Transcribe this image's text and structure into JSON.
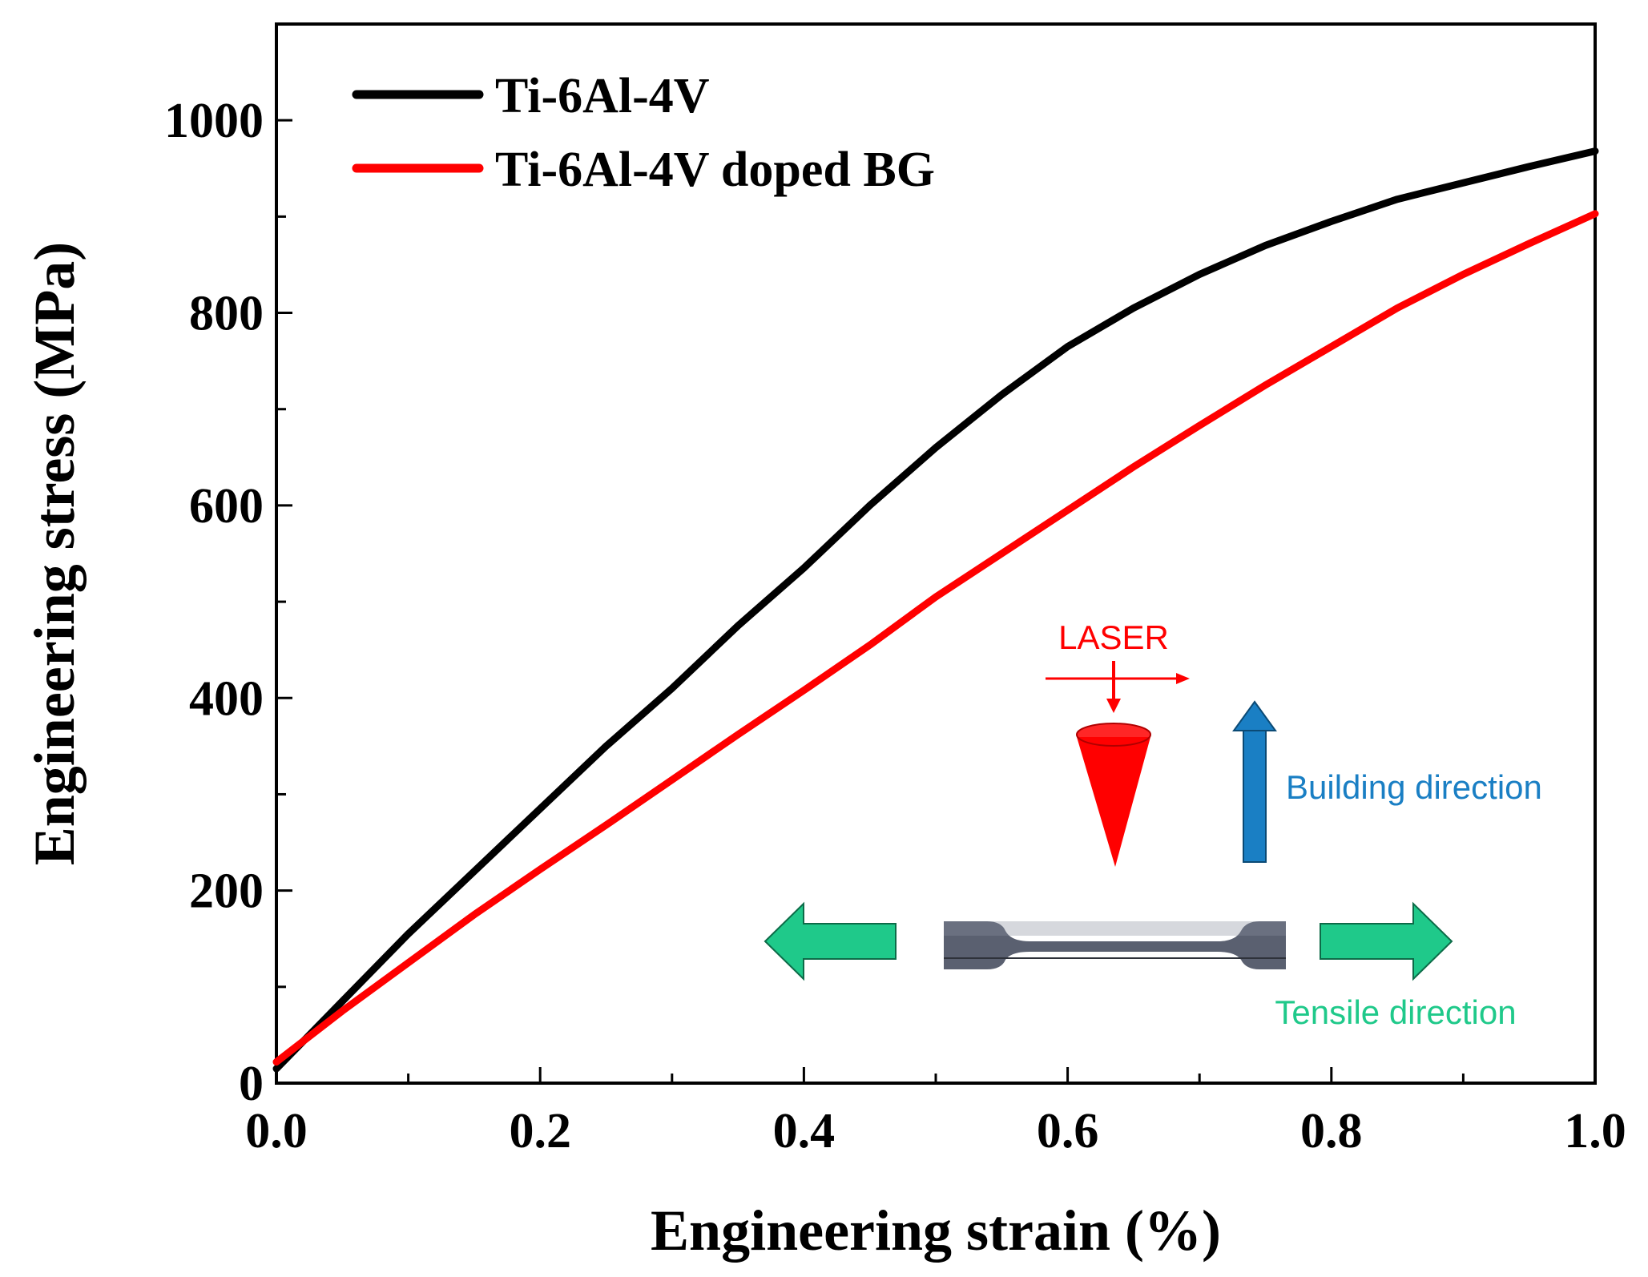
{
  "chart_data": {
    "type": "line",
    "title": "",
    "xlabel": "Engineering strain (%)",
    "ylabel": "Engineering stress (MPa)",
    "xlim": [
      0.0,
      1.0
    ],
    "ylim": [
      0,
      1100
    ],
    "xticks": [
      "0.0",
      "0.2",
      "0.4",
      "0.6",
      "0.8",
      "1.0"
    ],
    "xtick_values": [
      0.0,
      0.2,
      0.4,
      0.6,
      0.8,
      1.0
    ],
    "yticks": [
      "0",
      "200",
      "400",
      "600",
      "800",
      "1000"
    ],
    "ytick_values": [
      0,
      200,
      400,
      600,
      800,
      1000
    ],
    "grid": false,
    "legend_position": "top-left",
    "series": [
      {
        "name": "Ti-6Al-4V",
        "color": "#000000",
        "x": [
          0.0,
          0.05,
          0.1,
          0.15,
          0.2,
          0.25,
          0.3,
          0.35,
          0.4,
          0.45,
          0.5,
          0.55,
          0.6,
          0.65,
          0.7,
          0.75,
          0.8,
          0.85,
          0.9,
          0.95,
          1.0
        ],
        "y": [
          15,
          85,
          155,
          220,
          285,
          350,
          410,
          475,
          535,
          600,
          660,
          715,
          765,
          805,
          840,
          870,
          895,
          918,
          935,
          952,
          968
        ]
      },
      {
        "name": "Ti-6Al-4V doped BG",
        "color": "#ff0000",
        "x": [
          0.0,
          0.05,
          0.1,
          0.15,
          0.2,
          0.25,
          0.3,
          0.35,
          0.4,
          0.45,
          0.5,
          0.55,
          0.6,
          0.65,
          0.7,
          0.75,
          0.8,
          0.85,
          0.9,
          0.95,
          1.0
        ],
        "y": [
          22,
          75,
          125,
          175,
          222,
          268,
          315,
          362,
          408,
          455,
          505,
          550,
          595,
          640,
          683,
          725,
          765,
          805,
          840,
          872,
          903
        ]
      }
    ],
    "annotations": {
      "laser_label": "LASER",
      "building_direction": "Building direction",
      "tensile_direction": "Tensile direction"
    }
  },
  "colors": {
    "building_arrow": "#1a7fc4",
    "tensile_arrow": "#1fc98a",
    "laser": "#ff0000",
    "specimen": "#5a6070"
  }
}
